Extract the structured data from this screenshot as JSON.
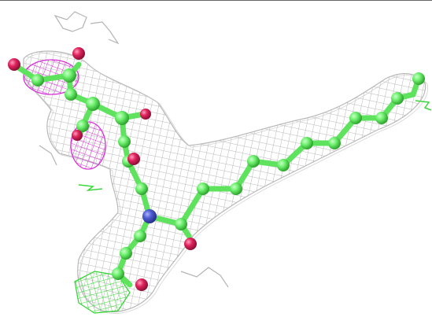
{
  "scene": {
    "kind": "molecular-structure-with-electron-density-mesh",
    "background": "#ffffff",
    "colors": {
      "density_mesh": "#b4b4b4",
      "difference_mesh_magenta": "#d633d6",
      "difference_mesh_green": "#3ad63a",
      "carbon": "#6ef06e",
      "bond": "#5fe35f",
      "oxygen": "#e0245e",
      "nitrogen": "#4d5cd1"
    }
  }
}
